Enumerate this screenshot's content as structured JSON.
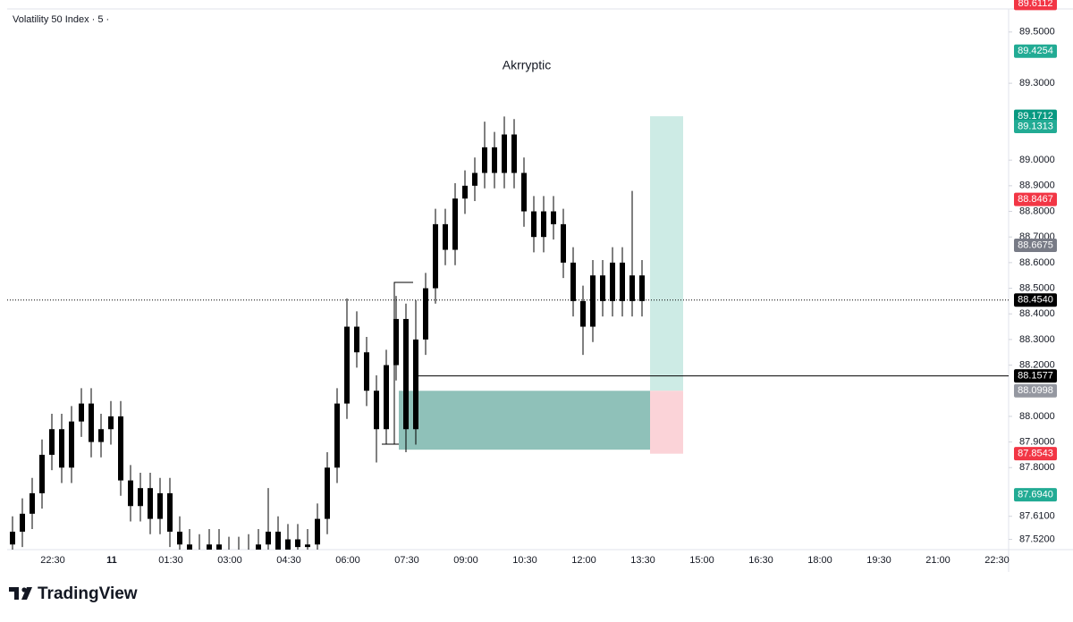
{
  "header": {
    "symbol": "Volatility 50 Index · 5 ·"
  },
  "brand": "TradingView",
  "chart_data": {
    "type": "candlestick",
    "title": "Akrryptic",
    "xticks": [
      "22:30",
      "11",
      "01:30",
      "03:00",
      "04:30",
      "06:00",
      "07:30",
      "09:00",
      "10:30",
      "12:00",
      "13:30",
      "15:00",
      "16:30",
      "18:00",
      "19:30",
      "21:00",
      "22:30"
    ],
    "open": [
      87.5,
      87.55,
      87.62,
      87.7,
      87.85,
      87.95,
      87.8,
      87.98,
      88.05,
      87.9,
      87.95,
      88.0,
      87.75,
      87.65,
      87.72,
      87.6,
      87.7,
      87.55,
      87.5,
      87.48,
      87.47,
      87.5,
      87.47,
      87.46,
      87.47,
      87.48,
      87.5,
      87.55,
      87.48,
      87.52,
      87.49,
      87.5,
      87.6,
      87.8,
      88.05,
      88.35,
      88.25,
      88.1,
      87.95,
      88.2,
      88.38,
      87.95,
      88.3,
      88.5,
      88.75,
      88.65,
      88.85,
      88.9,
      88.95,
      89.05,
      88.95,
      89.1,
      88.95,
      88.8,
      88.7,
      88.8,
      88.75,
      88.6,
      88.45,
      88.35,
      88.55,
      88.45,
      88.6,
      88.45,
      88.55
    ],
    "high": [
      87.61,
      87.68,
      87.76,
      87.91,
      88.01,
      88.01,
      88.04,
      88.11,
      88.11,
      88.01,
      88.06,
      88.06,
      87.81,
      87.78,
      87.78,
      87.76,
      87.76,
      87.61,
      87.56,
      87.54,
      87.56,
      87.56,
      87.53,
      87.53,
      87.54,
      87.56,
      87.72,
      87.61,
      87.58,
      87.58,
      87.56,
      87.66,
      87.86,
      88.11,
      88.46,
      88.41,
      88.31,
      88.16,
      88.26,
      88.47,
      88.44,
      88.36,
      88.56,
      88.81,
      88.81,
      88.91,
      88.96,
      89.01,
      89.15,
      89.11,
      89.17,
      89.16,
      89.01,
      88.86,
      88.86,
      88.86,
      88.81,
      88.66,
      88.51,
      88.61,
      88.61,
      88.66,
      88.66,
      88.88,
      88.61
    ],
    "low": [
      87.44,
      87.49,
      87.56,
      87.64,
      87.79,
      87.74,
      87.74,
      87.92,
      87.84,
      87.84,
      87.89,
      87.69,
      87.59,
      87.59,
      87.54,
      87.54,
      87.49,
      87.44,
      87.42,
      87.41,
      87.41,
      87.41,
      87.4,
      87.4,
      87.41,
      87.42,
      87.44,
      87.42,
      87.42,
      87.43,
      87.43,
      87.44,
      87.54,
      87.74,
      87.99,
      88.19,
      88.04,
      87.82,
      87.89,
      88.14,
      87.86,
      87.89,
      88.24,
      88.44,
      88.59,
      88.59,
      88.79,
      88.84,
      88.89,
      88.89,
      88.89,
      88.89,
      88.74,
      88.64,
      88.64,
      88.69,
      88.54,
      88.39,
      88.24,
      88.29,
      88.39,
      88.39,
      88.39,
      88.39,
      88.39
    ],
    "close": [
      87.55,
      87.62,
      87.7,
      87.85,
      87.95,
      87.8,
      87.98,
      88.05,
      87.9,
      87.95,
      88.0,
      87.75,
      87.65,
      87.72,
      87.6,
      87.7,
      87.55,
      87.5,
      87.48,
      87.47,
      87.5,
      87.47,
      87.46,
      87.47,
      87.48,
      87.5,
      87.55,
      87.48,
      87.52,
      87.49,
      87.5,
      87.6,
      87.8,
      88.05,
      88.35,
      88.25,
      88.1,
      87.95,
      88.2,
      88.38,
      87.95,
      88.3,
      88.5,
      88.75,
      88.65,
      88.85,
      88.9,
      88.95,
      89.05,
      88.95,
      89.1,
      88.95,
      88.8,
      88.7,
      88.8,
      88.75,
      88.6,
      88.45,
      88.35,
      88.55,
      88.45,
      88.6,
      88.45,
      88.55,
      88.45
    ],
    "color": "#000000",
    "ylim": [
      87.48,
      89.59
    ],
    "yticks": [
      {
        "value": 89.5,
        "label": "89.5000"
      },
      {
        "value": 89.3,
        "label": "89.3000"
      },
      {
        "value": 89.0,
        "label": "89.0000"
      },
      {
        "value": 88.9,
        "label": "88.9000"
      },
      {
        "value": 88.8,
        "label": "88.8000"
      },
      {
        "value": 88.7,
        "label": "88.7000"
      },
      {
        "value": 88.6,
        "label": "88.6000"
      },
      {
        "value": 88.5,
        "label": "88.5000"
      },
      {
        "value": 88.4,
        "label": "88.4000"
      },
      {
        "value": 88.3,
        "label": "88.3000"
      },
      {
        "value": 88.2,
        "label": "88.2000"
      },
      {
        "value": 88.0,
        "label": "88.0000"
      },
      {
        "value": 87.9,
        "label": "87.9000"
      },
      {
        "value": 87.8,
        "label": "87.8000"
      },
      {
        "value": 87.61,
        "label": "87.6100"
      },
      {
        "value": 87.52,
        "label": "87.5200"
      }
    ],
    "price_labels": [
      {
        "value": 89.6112,
        "color": "#f23645"
      },
      {
        "value": 89.4254,
        "color": "#22ab94"
      },
      {
        "value": 89.1712,
        "color": "#089981"
      },
      {
        "value": 89.1313,
        "color": "#22ab94"
      },
      {
        "value": 88.8467,
        "color": "#f23645"
      },
      {
        "value": 88.6675,
        "color": "#787b86"
      },
      {
        "value": 88.454,
        "label": "88.4540",
        "color": "#000000"
      },
      {
        "value": 88.1577,
        "color": "#000000"
      },
      {
        "value": 88.0998,
        "color": "#9598a1"
      },
      {
        "value": 87.8543,
        "color": "#f23645"
      },
      {
        "value": 87.694,
        "label": "87.6940",
        "color": "#22ab94"
      }
    ],
    "zones": [
      {
        "top": 88.0998,
        "bottom": 87.87,
        "color": "#8fc1b9"
      },
      {
        "top": 89.1712,
        "bottom": 88.0998,
        "color": "#cdebe5"
      },
      {
        "top": 88.0998,
        "bottom": 87.8543,
        "color": "#fbd3d8"
      }
    ],
    "lines": [
      {
        "value": 88.454,
        "style": "dotted"
      },
      {
        "value": 88.1577,
        "style": "solid"
      }
    ]
  }
}
